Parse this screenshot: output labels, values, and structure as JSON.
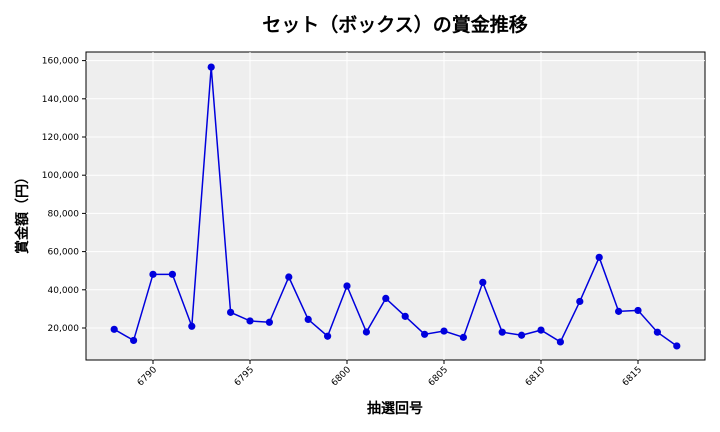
{
  "chart_data": {
    "type": "line",
    "title": "セット（ボックス）の賞金推移",
    "xlabel": "抽選回号",
    "ylabel": "賞金額（円）",
    "x": [
      6788,
      6789,
      6790,
      6791,
      6792,
      6793,
      6794,
      6795,
      6796,
      6797,
      6798,
      6799,
      6800,
      6801,
      6802,
      6803,
      6804,
      6805,
      6806,
      6807,
      6808,
      6809,
      6810,
      6811,
      6812,
      6813,
      6814,
      6815,
      6816,
      6817
    ],
    "series": [
      {
        "name": "賞金額",
        "color": "#0000dd",
        "values": [
          19300,
          13500,
          48100,
          48100,
          20900,
          156600,
          28200,
          23700,
          23000,
          46700,
          24500,
          15700,
          42000,
          17900,
          35500,
          26100,
          16700,
          18400,
          15100,
          43900,
          17800,
          16200,
          18900,
          12700,
          33900,
          57000,
          28700,
          29200,
          17800,
          10600
        ]
      }
    ],
    "xticks": [
      6790,
      6795,
      6800,
      6805,
      6810,
      6815
    ],
    "xtick_labels": [
      "6790",
      "6795",
      "6800",
      "6805",
      "6810",
      "6815"
    ],
    "yticks": [
      20000,
      40000,
      60000,
      80000,
      100000,
      120000,
      140000,
      160000
    ],
    "ytick_labels": [
      "20,000",
      "40,000",
      "60,000",
      "80,000",
      "100,000",
      "120,000",
      "140,000",
      "160,000"
    ],
    "xlim": [
      6786.5,
      6818.5
    ],
    "ylim": [
      0,
      164000
    ],
    "grid": true,
    "background": "#eeeeee",
    "legend": false
  }
}
